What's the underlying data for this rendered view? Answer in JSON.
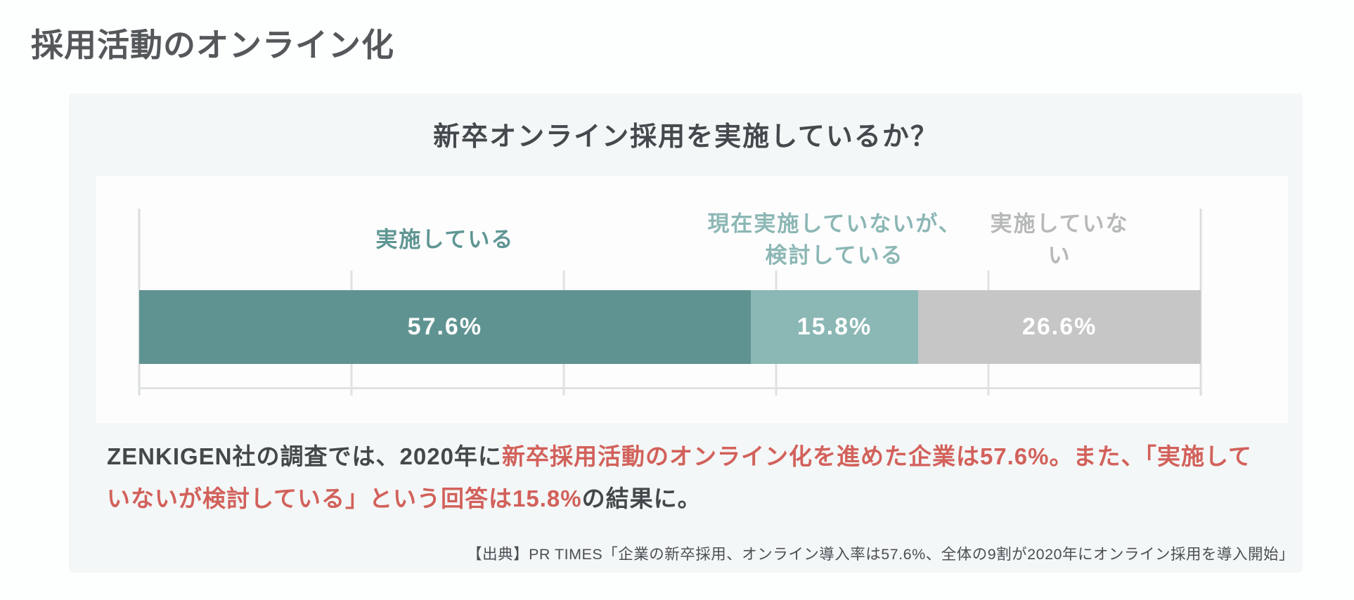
{
  "page": {
    "heading": "採用活動のオンライン化"
  },
  "card": {
    "chart_title": "新卒オンライン採用を実施しているか？",
    "description": {
      "line1_dark": "ZENKIGEN社の調査では、2020年に",
      "line1_red": "新卒採用活動のオンライン化を進めた企業は57.6%。また、「実施して",
      "line2_red": "いないが検討している」という回答は15.8%",
      "line2_dark": "の結果に。"
    },
    "source": "【出典】PR TIMES「企業の新卒採用、オンライン導入率は57.6%、全体の9割が2020年にオンライン採用を導入開始」"
  },
  "chart_data": {
    "type": "bar",
    "variant": "horizontal-stacked-100pct",
    "title": "新卒オンライン採用を実施しているか？",
    "categories": [
      "実施している",
      "現在実施していないが、\n検討している",
      "実施していない"
    ],
    "values": [
      57.6,
      15.8,
      26.6
    ],
    "data_labels": [
      "57.6%",
      "15.8%",
      "26.6%"
    ],
    "unit": "%",
    "xlim": [
      0,
      100
    ],
    "gridline_percents": [
      0,
      20,
      40,
      60,
      80,
      100
    ],
    "grid": true,
    "legend_position": "labels-above-segments",
    "segment_colors": [
      "#5f9391",
      "#8bb7b4",
      "#c6c6c7"
    ],
    "label_colors": [
      "#5f9693",
      "#8cb7b4",
      "#b7b8b8"
    ]
  },
  "colors": {
    "page_bg": "#fdfefe",
    "card_bg": "#f4f7f7",
    "plot_bg": "#fdfdfe",
    "heading_text": "#54585b",
    "body_text": "#44484b",
    "accent_red": "#d2615b",
    "gridline": "#e0e2e2",
    "value_text": "#ffffff"
  }
}
